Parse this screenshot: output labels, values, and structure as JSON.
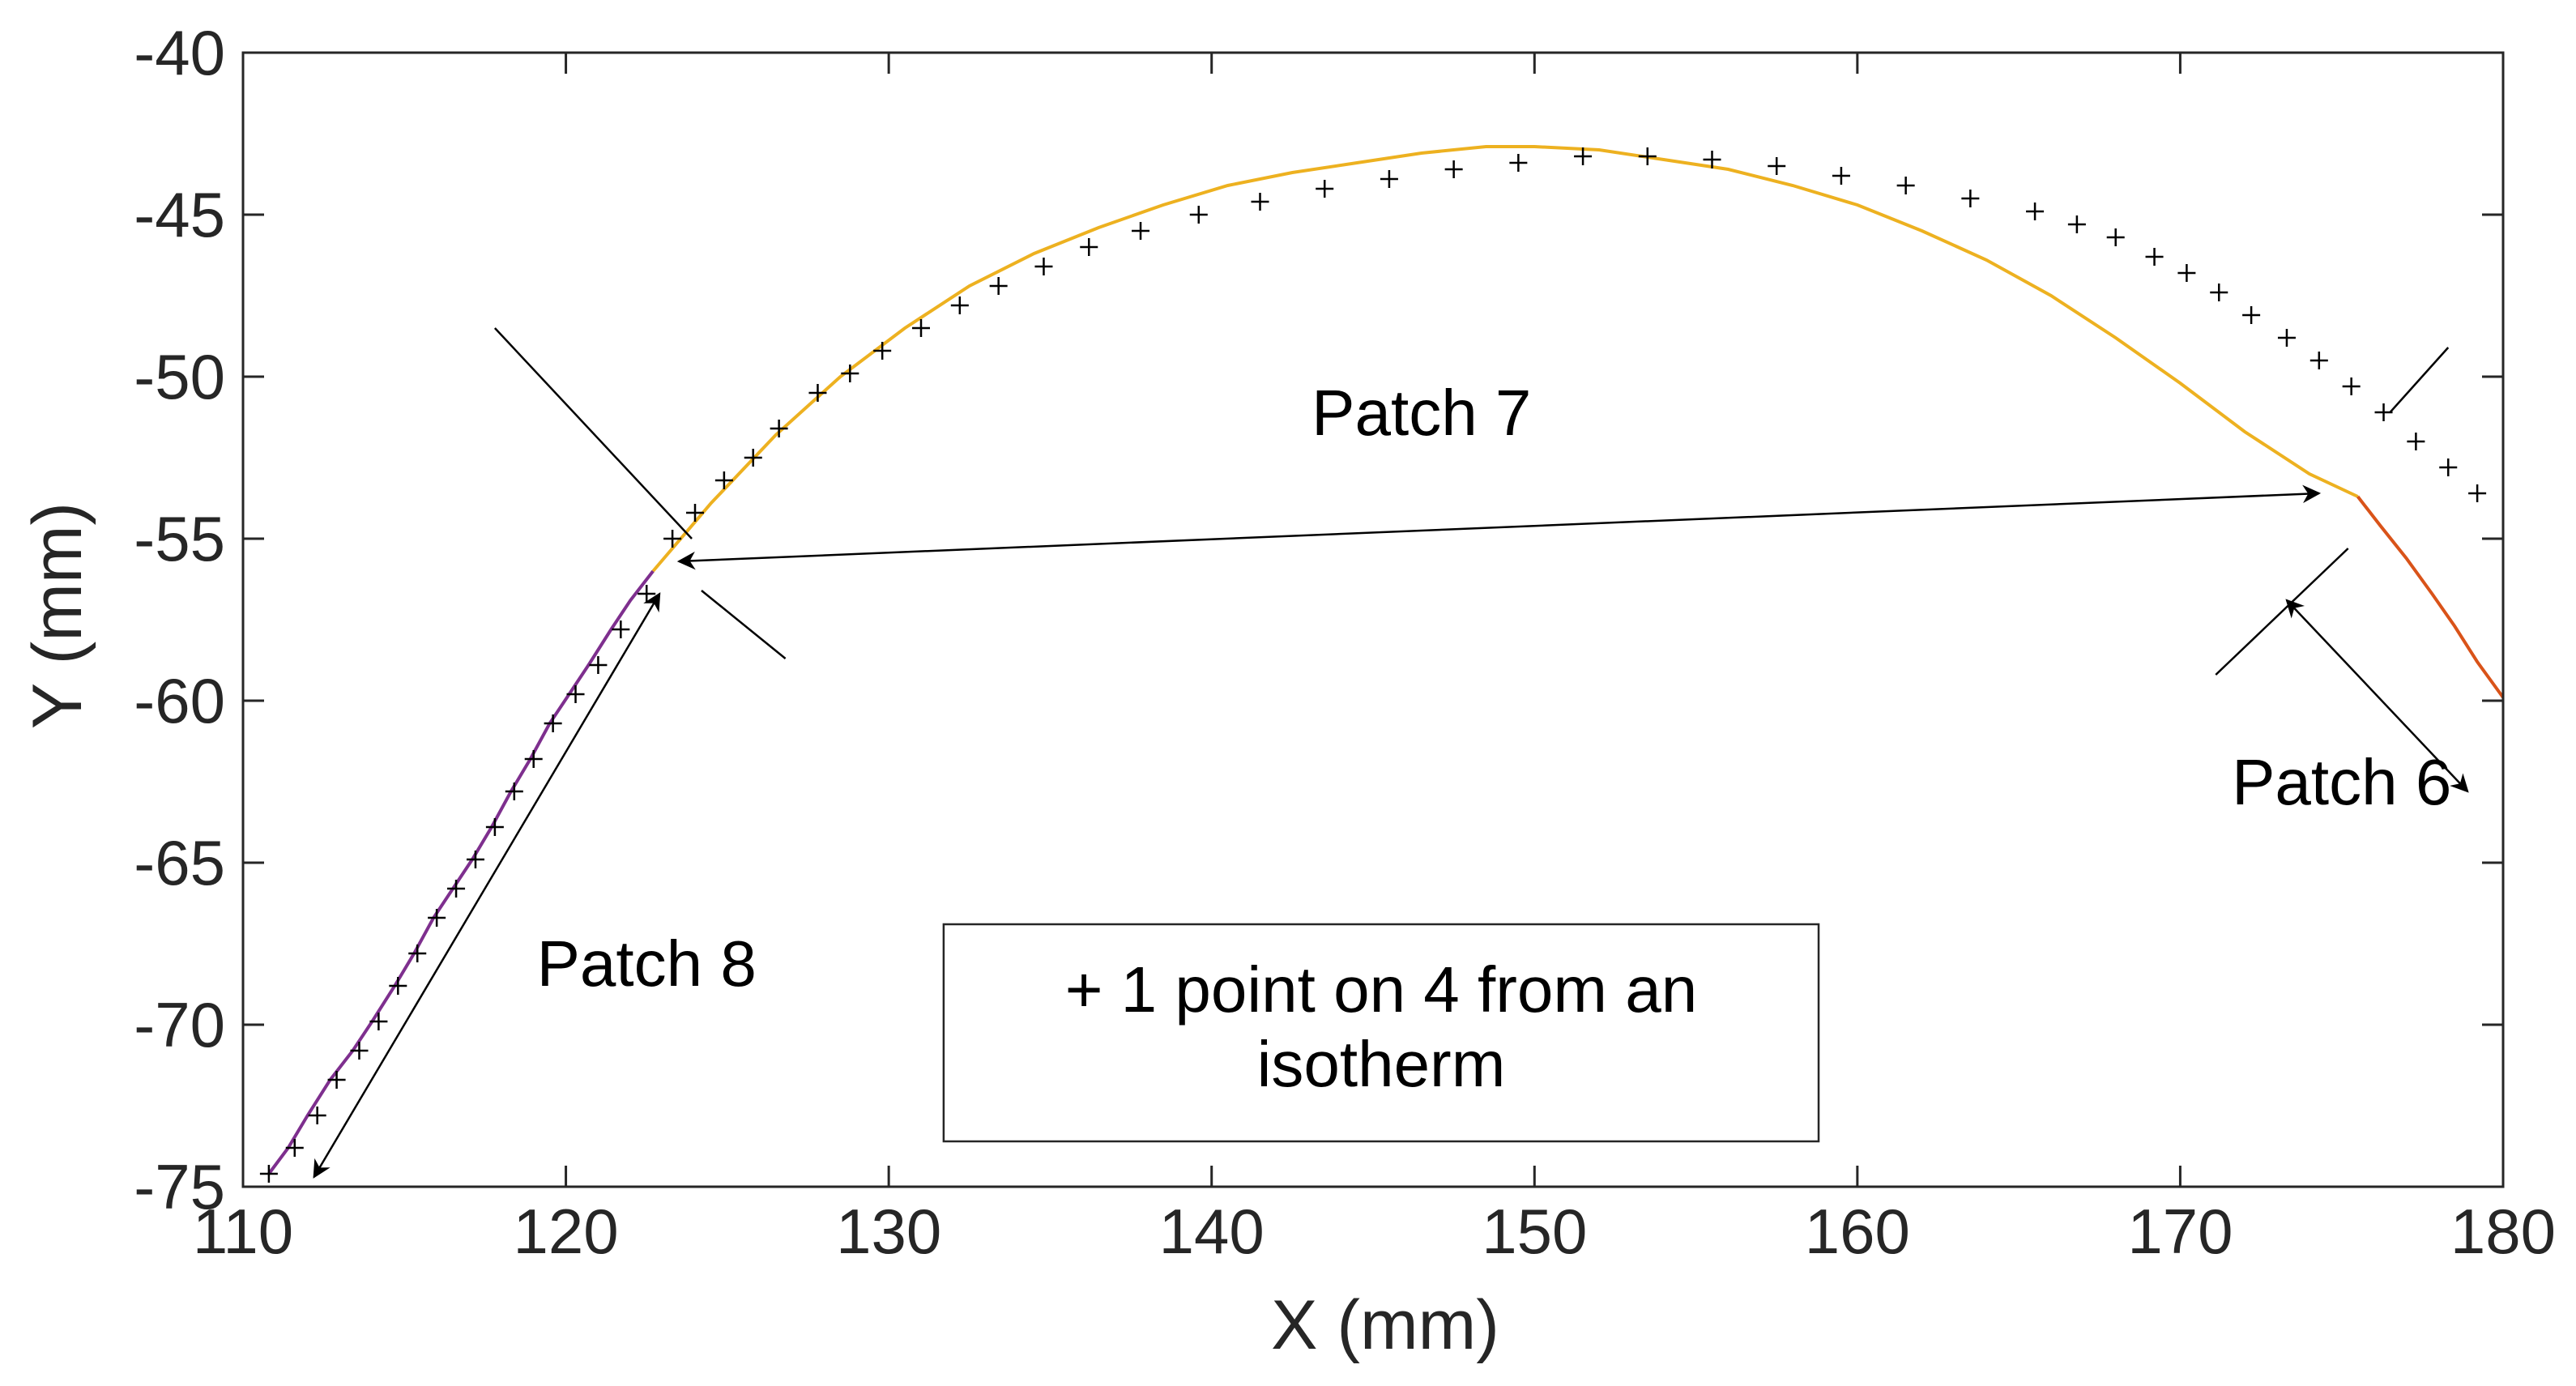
{
  "chart_data": {
    "type": "line",
    "title": "",
    "xlabel": "X (mm)",
    "ylabel": "Y (mm)",
    "xlim": [
      110,
      180
    ],
    "ylim": [
      -75,
      -40
    ],
    "xticks": [
      110,
      120,
      130,
      140,
      150,
      160,
      170,
      180
    ],
    "yticks": [
      -40,
      -45,
      -50,
      -55,
      -60,
      -65,
      -70,
      -75
    ],
    "grid": false,
    "colors": {
      "patch8": "#7e2f8e",
      "patch7": "#edb120",
      "patch6": "#d95319",
      "markers": "#000000",
      "axes": "#262626"
    },
    "series": [
      {
        "kind": "curve",
        "color": "patch8",
        "x": [
          110.8,
          111.4,
          112.0,
          112.7,
          113.4,
          114.0,
          114.7,
          115.3,
          115.9,
          116.5,
          117.1,
          117.7,
          118.3,
          118.9,
          119.5,
          120.1,
          120.7,
          121.4,
          122.0,
          122.7
        ],
        "y": [
          -74.6,
          -73.8,
          -72.8,
          -71.7,
          -70.8,
          -69.9,
          -68.8,
          -67.8,
          -66.7,
          -65.8,
          -64.9,
          -63.9,
          -62.8,
          -61.8,
          -60.7,
          -59.8,
          -58.9,
          -57.8,
          -56.9,
          -56.0
        ]
      },
      {
        "kind": "curve",
        "color": "patch7",
        "x": [
          122.7,
          124.5,
          126.5,
          128.5,
          130.5,
          132.5,
          134.5,
          136.5,
          138.5,
          140.5,
          142.5,
          144.5,
          146.5,
          148.5,
          150.0,
          152.0,
          154.0,
          156.0,
          158.0,
          160.0,
          162.0,
          164.0,
          166.0,
          168.0,
          170.0,
          172.0,
          174.0,
          175.5
        ],
        "y": [
          -56.0,
          -53.9,
          -51.8,
          -50.0,
          -48.5,
          -47.2,
          -46.2,
          -45.4,
          -44.7,
          -44.1,
          -43.7,
          -43.4,
          -43.1,
          -42.9,
          -42.9,
          -43.0,
          -43.3,
          -43.6,
          -44.1,
          -44.7,
          -45.5,
          -46.4,
          -47.5,
          -48.8,
          -50.2,
          -51.7,
          -53.0,
          -53.7
        ]
      },
      {
        "kind": "curve",
        "color": "patch6",
        "x": [
          175.5,
          176.2,
          177.0,
          177.8,
          178.5,
          179.2,
          180.0
        ],
        "y": [
          -53.7,
          -54.6,
          -55.6,
          -56.7,
          -57.7,
          -58.8,
          -59.9
        ]
      },
      {
        "kind": "markers",
        "marker": "+",
        "color": "markers",
        "x": [
          110.8,
          111.6,
          112.3,
          112.9,
          113.6,
          114.2,
          114.8,
          115.4,
          116.0,
          116.6,
          117.2,
          117.8,
          118.4,
          119.0,
          119.6,
          120.3,
          121.0,
          121.7,
          122.5,
          123.3,
          124.0,
          124.9,
          125.8,
          126.6,
          127.8,
          128.8,
          129.8,
          131.0,
          132.2,
          133.4,
          134.8,
          136.2,
          137.8,
          139.6,
          141.5,
          143.5,
          145.5,
          147.5,
          149.5,
          151.5,
          153.5,
          155.5,
          157.5,
          159.5,
          161.5,
          163.5,
          165.5,
          166.8,
          168.0,
          169.2,
          170.2,
          171.2,
          172.2,
          173.3,
          174.3,
          175.3,
          176.3,
          177.3,
          178.3,
          179.2
        ],
        "y": [
          -74.6,
          -73.8,
          -72.8,
          -71.7,
          -70.8,
          -69.9,
          -68.8,
          -67.8,
          -66.7,
          -65.8,
          -64.9,
          -63.9,
          -62.8,
          -61.8,
          -60.7,
          -59.8,
          -58.9,
          -57.8,
          -56.7,
          -55.0,
          -54.2,
          -53.2,
          -52.5,
          -51.6,
          -50.5,
          -49.9,
          -49.2,
          -48.5,
          -47.8,
          -47.2,
          -46.6,
          -46.0,
          -45.5,
          -45.0,
          -44.6,
          -44.2,
          -43.9,
          -43.6,
          -43.4,
          -43.2,
          -43.2,
          -43.3,
          -43.5,
          -43.8,
          -44.1,
          -44.5,
          -44.9,
          -45.3,
          -45.7,
          -46.3,
          -46.8,
          -47.4,
          -48.1,
          -48.8,
          -49.5,
          -50.3,
          -51.1,
          -52.0,
          -52.8,
          -53.6
        ],
        "note": ""
      }
    ],
    "annotations": [
      {
        "text": "Patch 7",
        "x": 146.5,
        "y": -51.8
      },
      {
        "text": "Patch 6",
        "x": 175.0,
        "y": -63.2
      },
      {
        "text": "Patch 8",
        "x": 122.5,
        "y": -68.8
      }
    ],
    "legend_box": {
      "lines": [
        "+ 1 point on 4 from an",
        "isotherm"
      ]
    }
  }
}
